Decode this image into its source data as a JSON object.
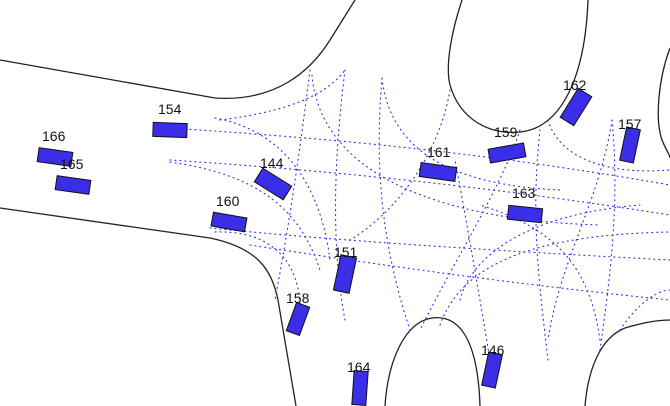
{
  "colors": {
    "background": "#ffffff",
    "road_edge": "#222222",
    "lane_path": "#2c2ce0",
    "vehicle_fill": "#3a2ee8",
    "vehicle_stroke": "#111111",
    "label": "#111111"
  },
  "vehicles": [
    {
      "id": "166",
      "label": "166"
    },
    {
      "id": "165",
      "label": "165"
    },
    {
      "id": "154",
      "label": "154"
    },
    {
      "id": "144",
      "label": "144"
    },
    {
      "id": "160",
      "label": "160"
    },
    {
      "id": "161",
      "label": "161"
    },
    {
      "id": "159",
      "label": "159"
    },
    {
      "id": "162",
      "label": "162"
    },
    {
      "id": "157",
      "label": "157"
    },
    {
      "id": "163",
      "label": "163"
    },
    {
      "id": "151",
      "label": "151"
    },
    {
      "id": "158",
      "label": "158"
    },
    {
      "id": "146",
      "label": "146"
    },
    {
      "id": "164",
      "label": "164"
    }
  ]
}
